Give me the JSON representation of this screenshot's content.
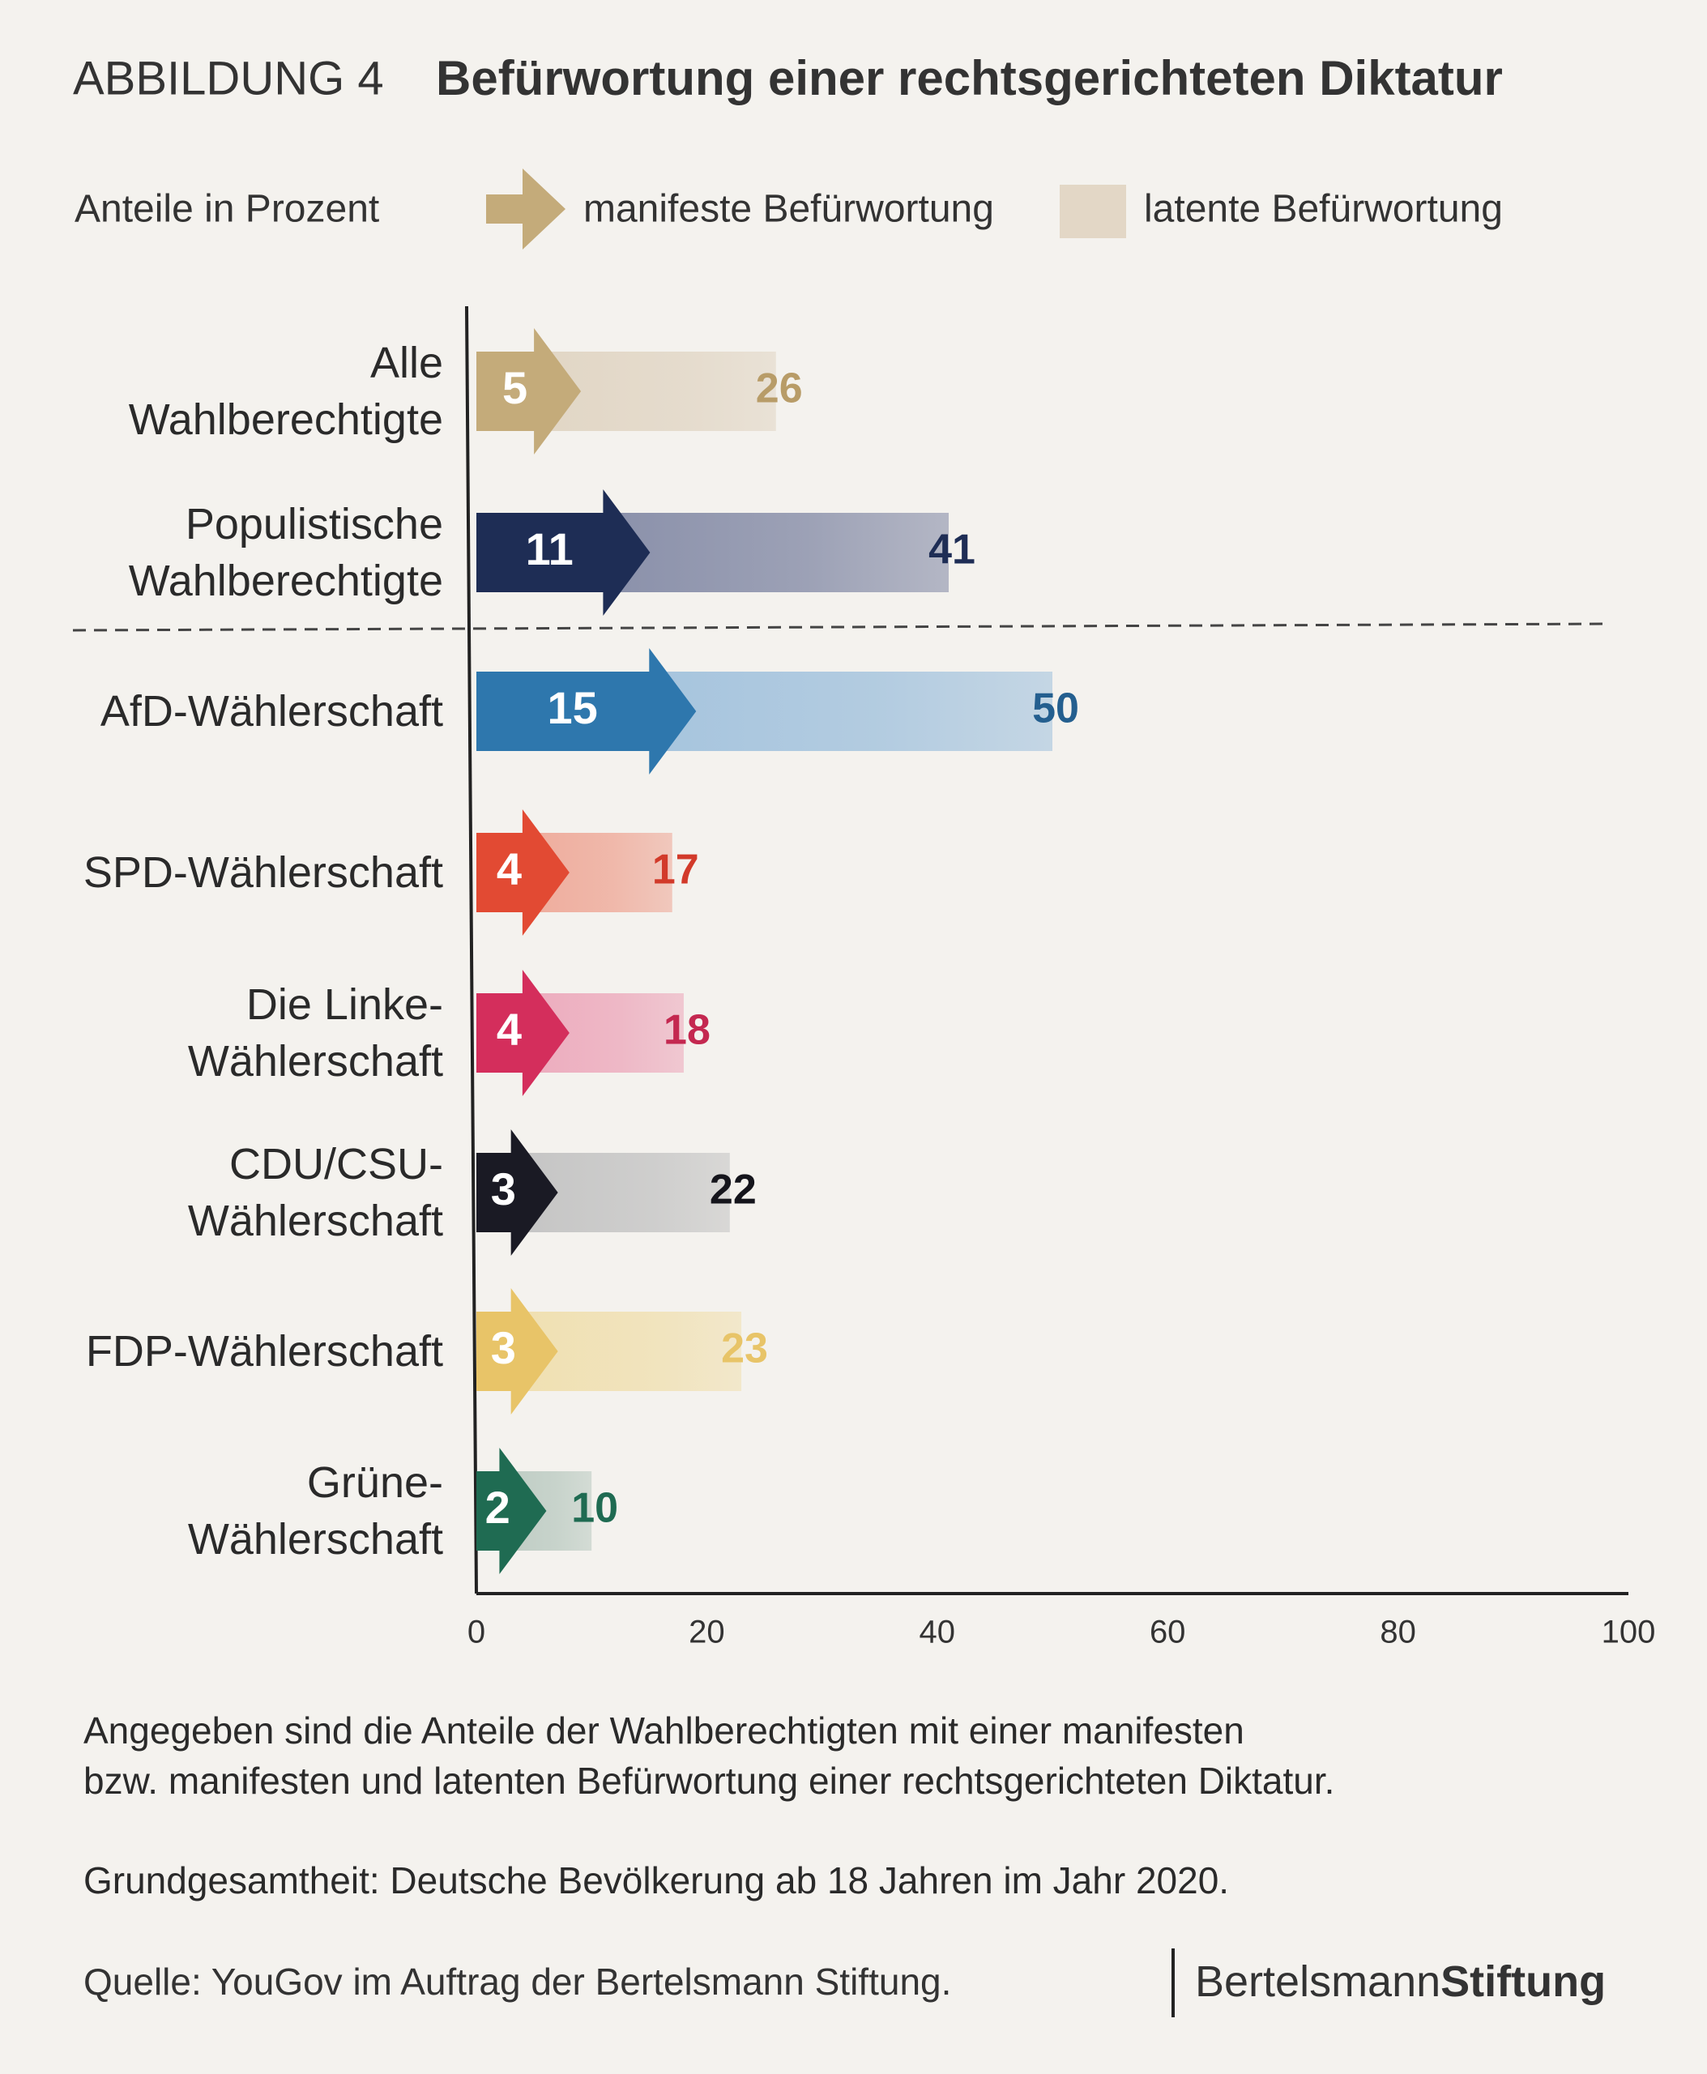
{
  "chart_data": {
    "type": "bar",
    "figure_label": "ABBILDUNG 4",
    "title": "Befürwortung einer rechtsgerichteten Diktatur",
    "subtitle": "Anteile in Prozent",
    "categories": [
      "Alle\nWahlberechtigte",
      "Populistische\nWahlberechtigte",
      "AfD-Wählerschaft",
      "SPD-Wählerschaft",
      "Die Linke-\nWählerschaft",
      "CDU/CSU-\nWählerschaft",
      "FDP-Wählerschaft",
      "Grüne-\nWählerschaft"
    ],
    "series": [
      {
        "name": "manifeste Befürwortung",
        "color": "#c4ab7a",
        "values": [
          5,
          11,
          15,
          4,
          4,
          3,
          3,
          2
        ],
        "colors": [
          "#c4ab7a",
          "#1e2d55",
          "#2e77ad",
          "#e24a33",
          "#d42e5c",
          "#1a1a24",
          "#e8c468",
          "#1f6b52"
        ]
      },
      {
        "name": "latente Befürwortung",
        "color": "#e3d7c6",
        "values": [
          26,
          41,
          50,
          17,
          18,
          22,
          23,
          10
        ],
        "colors": [
          "#e0d4c2",
          "#7f86a3",
          "#9dbfdc",
          "#eea594",
          "#eca5b9",
          "#c2c2c2",
          "#f0dfae",
          "#b9c9c0"
        ],
        "label_colors": [
          "#b89c68",
          "#1e2d55",
          "#245f8f",
          "#d23a2a",
          "#c42850",
          "#15151c",
          "#e8c468",
          "#1f6b52"
        ]
      }
    ],
    "xlim": [
      0,
      100
    ],
    "xticks": [
      0,
      20,
      40,
      60,
      80,
      100
    ],
    "notes": [
      "Angegeben sind die Anteile der Wahlberechtigten mit einer manifesten\nbzw. manifesten und latenten Befürwortung einer rechtsgerichteten Diktatur.",
      "Grundgesamtheit: Deutsche Bevölkerung ab 18 Jahren im Jahr 2020."
    ],
    "source": "Quelle: YouGov im Auftrag der Bertelsmann Stiftung.",
    "brand": [
      "Bertelsmann",
      "Stiftung"
    ]
  }
}
